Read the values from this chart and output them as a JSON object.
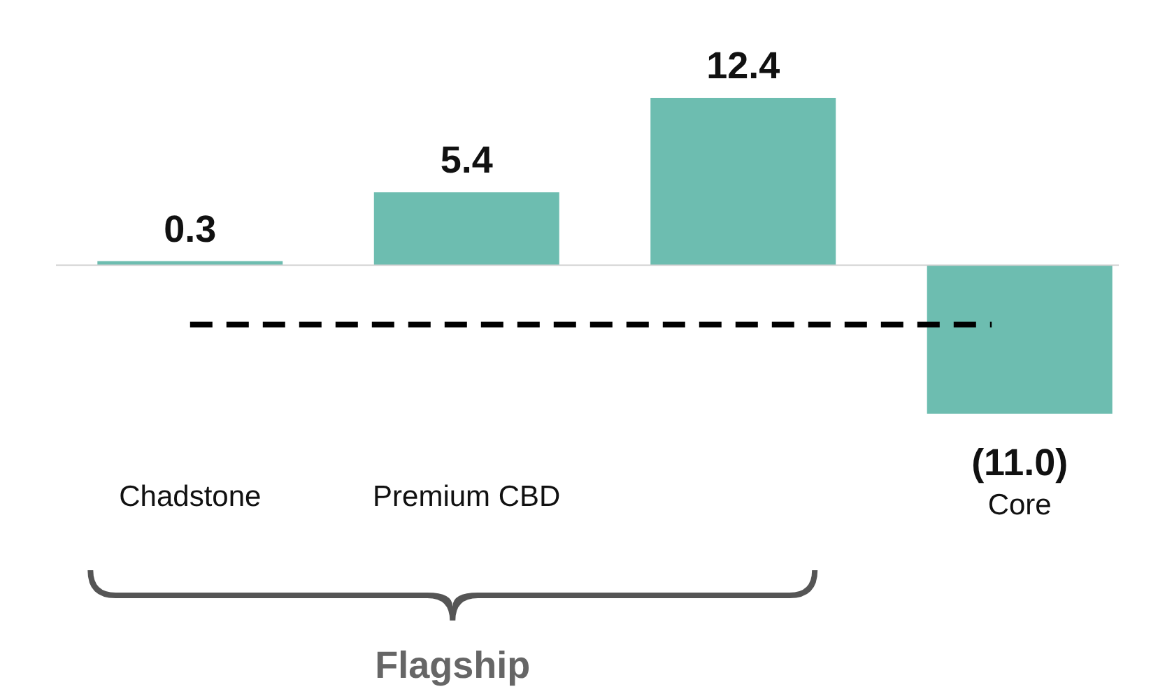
{
  "chart_data": {
    "type": "bar",
    "categories": [
      "Chadstone",
      "Premium CBD",
      null,
      "Core"
    ],
    "values": [
      0.3,
      5.4,
      12.4,
      -11.0
    ],
    "color": "#6dbdb0",
    "value_labels": [
      "0.3",
      "5.4",
      "12.4",
      "(11.0)"
    ],
    "ref_lines": [
      {
        "axis": "y",
        "value": -4.4,
        "color": "#000000",
        "line_style": "dashed"
      }
    ],
    "annotations": [
      "Flagship"
    ]
  }
}
